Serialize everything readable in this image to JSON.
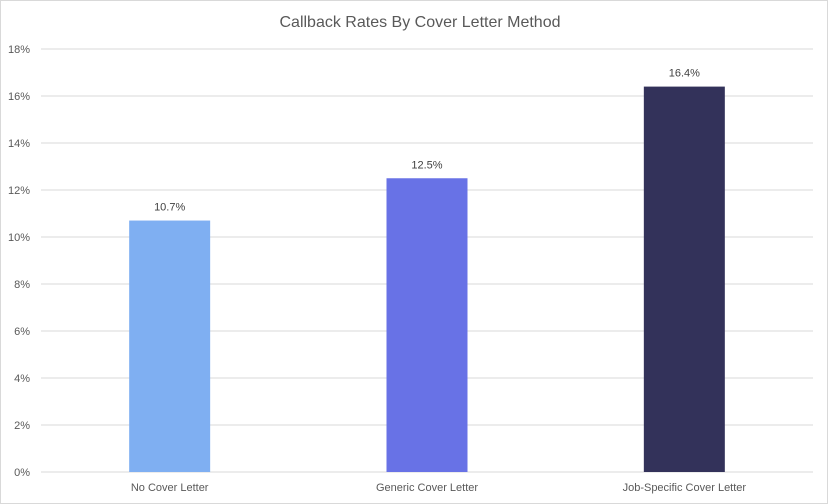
{
  "chart_data": {
    "type": "bar",
    "title": "Callback Rates By Cover Letter Method",
    "categories": [
      "No Cover Letter",
      "Generic Cover Letter",
      "Job-Specific Cover Letter"
    ],
    "values": [
      10.7,
      12.5,
      16.4
    ],
    "data_labels": [
      "10.7%",
      "12.5%",
      "16.4%"
    ],
    "colors": [
      "#7FAFF2",
      "#6872E6",
      "#33325A"
    ],
    "ylim": [
      0,
      18
    ],
    "yticks": [
      0,
      2,
      4,
      6,
      8,
      10,
      12,
      14,
      16,
      18
    ],
    "ytick_labels": [
      "0%",
      "2%",
      "4%",
      "6%",
      "8%",
      "10%",
      "12%",
      "14%",
      "16%",
      "18%"
    ],
    "xlabel": "",
    "ylabel": "",
    "grid": true,
    "legend": "none"
  }
}
